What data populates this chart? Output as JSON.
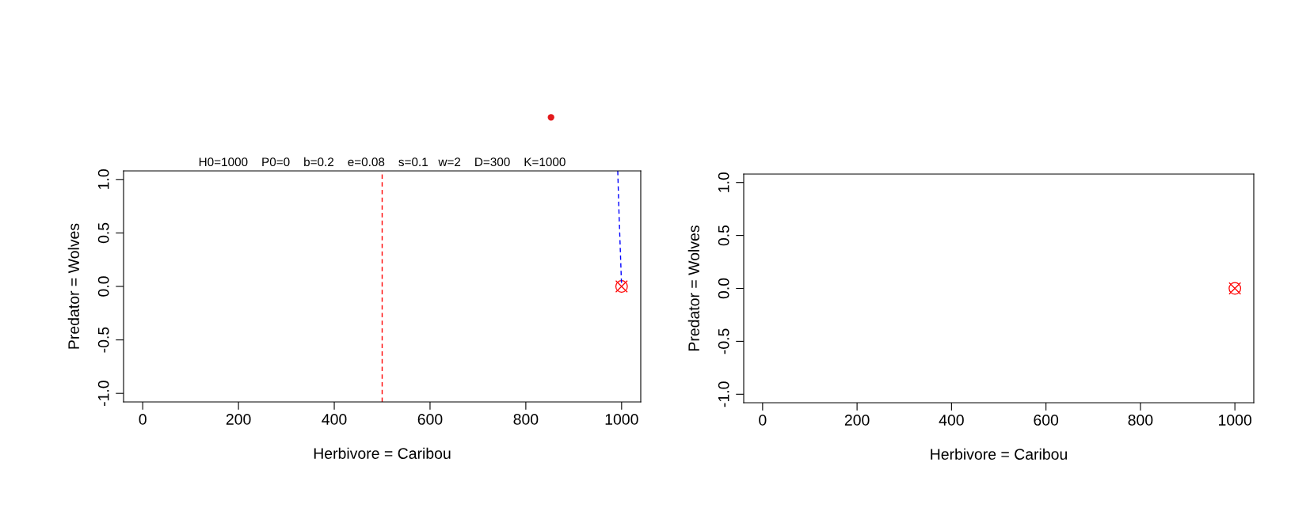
{
  "chart_data": [
    {
      "type": "line",
      "xlabel": "Herbivore = Caribou",
      "ylabel": "Predator = Wolves",
      "annotations": [
        "H0=1000    P0=0    b=0.2    e=0.08    s=0.1   w=2    D=300    K=1000"
      ],
      "xlim": [
        -40,
        1040
      ],
      "ylim": [
        -1.08,
        1.08
      ],
      "xticks": [
        0,
        200,
        400,
        600,
        800,
        1000
      ],
      "yticks": [
        {
          "value": -1,
          "label": "-1.0"
        },
        {
          "value": -0.5,
          "label": "-0.5"
        },
        {
          "value": 0,
          "label": "0.0"
        },
        {
          "value": 0.5,
          "label": "0.5"
        },
        {
          "value": 1,
          "label": "1.0"
        }
      ],
      "series": [
        {
          "color": "#0000ff",
          "line_style": "dashed",
          "x": [
            992,
            994.5,
            1000
          ],
          "values": [
            1.08,
            0.7,
            0
          ]
        },
        {
          "type": "scatter",
          "color": "#ff0000",
          "marker": "circle",
          "x": [
            1000
          ],
          "values": [
            0
          ]
        }
      ],
      "ref_lines": [
        {
          "axis": "x",
          "value": 500,
          "color": "#ff0000",
          "line_style": "dashed"
        }
      ],
      "grid": false,
      "legend": false
    },
    {
      "type": "scatter",
      "xlabel": "Herbivore = Caribou",
      "ylabel": "Predator = Wolves",
      "xlim": [
        -40,
        1040
      ],
      "ylim": [
        -1.08,
        1.08
      ],
      "xticks": [
        0,
        200,
        400,
        600,
        800,
        1000
      ],
      "yticks": [
        {
          "value": -1,
          "label": "-1.0"
        },
        {
          "value": -0.5,
          "label": "-0.5"
        },
        {
          "value": 0,
          "label": "0.0"
        },
        {
          "value": 0.5,
          "label": "0.5"
        },
        {
          "value": 1,
          "label": "1.0"
        }
      ],
      "series": [
        {
          "color": "#ff0000",
          "marker": "circle",
          "x": [
            1000
          ],
          "values": [
            0
          ]
        }
      ],
      "grid": false,
      "legend": false
    }
  ]
}
